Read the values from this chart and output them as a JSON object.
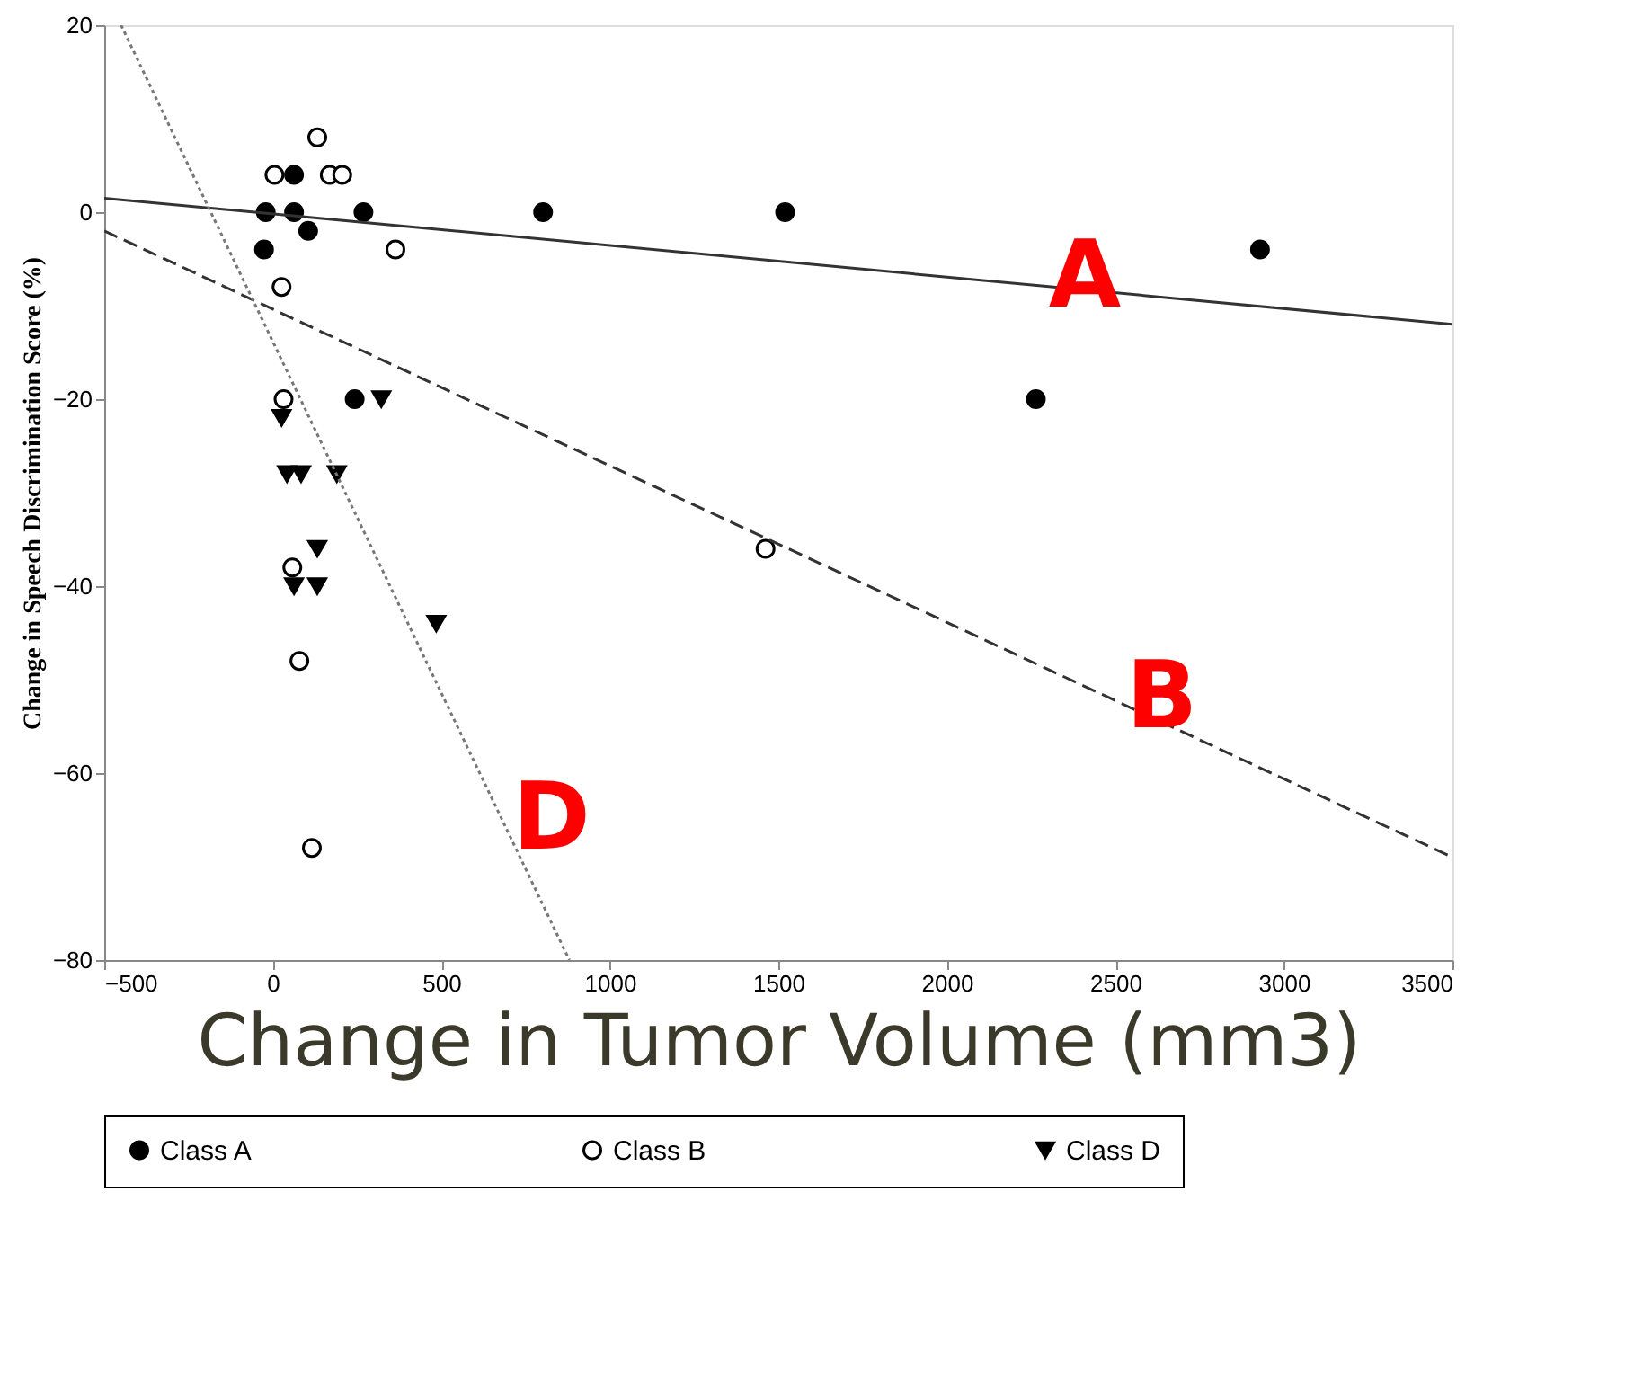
{
  "chart_data": {
    "type": "scatter",
    "xlabel": "Change in Tumor Volume (mm3)",
    "ylabel": "Change in Speech Discrimination Score (%)",
    "xlim": [
      -500,
      3500
    ],
    "xticks": [
      -500,
      0,
      500,
      1000,
      1500,
      2000,
      2500,
      3000,
      3500
    ],
    "ylim": [
      -80,
      20
    ],
    "yticks": [
      -80,
      -60,
      -40,
      -20,
      0,
      20
    ],
    "grid": false,
    "legend": "bottom",
    "series": [
      {
        "name": "Class A",
        "type": "scatter",
        "marker": "circle",
        "color": "#000000",
        "x": [
          -21,
          63,
          63,
          105,
          -26,
          269,
          802,
          243,
          1520,
          2929,
          2264
        ],
        "values": [
          0,
          0,
          4,
          -2,
          -4,
          0,
          0,
          -20,
          0,
          -4,
          -20
        ]
      },
      {
        "name": "Class B",
        "type": "scatter",
        "marker": "circle",
        "color": "#ffffff",
        "x": [
          132,
          5,
          169,
          206,
          364,
          26,
          32,
          58,
          79,
          116,
          1462
        ],
        "values": [
          8,
          4,
          4,
          4,
          -4,
          -8,
          -20,
          -38,
          -48,
          -68,
          -36
        ]
      },
      {
        "name": "Class D",
        "type": "scatter",
        "marker": "triangle",
        "color": "#000000",
        "x": [
          322,
          26,
          42,
          84,
          190,
          132,
          63,
          132,
          485
        ],
        "values": [
          -20,
          -22,
          -28,
          -28,
          -28,
          -36,
          -40,
          -40,
          -44
        ]
      },
      {
        "type": "line",
        "line_style": "solid",
        "color": "#333333",
        "x": [
          -500,
          3500
        ],
        "values": [
          1.5,
          -12
        ]
      },
      {
        "type": "line",
        "line_style": "dashed",
        "color": "#333333",
        "x": [
          -500,
          3500
        ],
        "values": [
          -2,
          -69
        ]
      },
      {
        "type": "line",
        "line_style": "dotted",
        "color": "#777777",
        "x": [
          -450,
          880
        ],
        "values": [
          20,
          -80
        ]
      }
    ],
    "annotations": [
      {
        "text": "A",
        "x": 2270,
        "y": -7
      },
      {
        "text": "B",
        "x": 2500,
        "y": -52
      },
      {
        "text": "D",
        "x": 680,
        "y": -65
      }
    ]
  }
}
